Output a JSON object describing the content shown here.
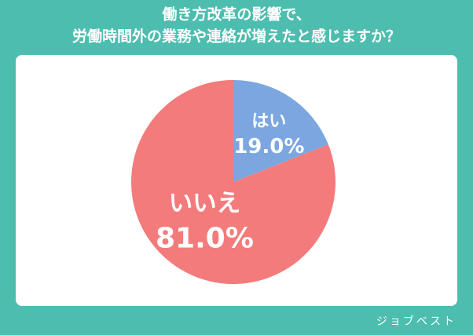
{
  "chart_data": {
    "type": "pie",
    "title": [
      "働き方改革の影響で、",
      "労働時間外の業務や連絡が増えたと感じますか？"
    ],
    "categories": [
      "はい",
      "いいえ"
    ],
    "values": [
      19.0,
      81.0
    ],
    "value_labels": [
      "19.0%",
      "81.0%"
    ],
    "colors": [
      "#7ba6e0",
      "#f47b7b"
    ],
    "watermark": "ジョブベスト"
  }
}
